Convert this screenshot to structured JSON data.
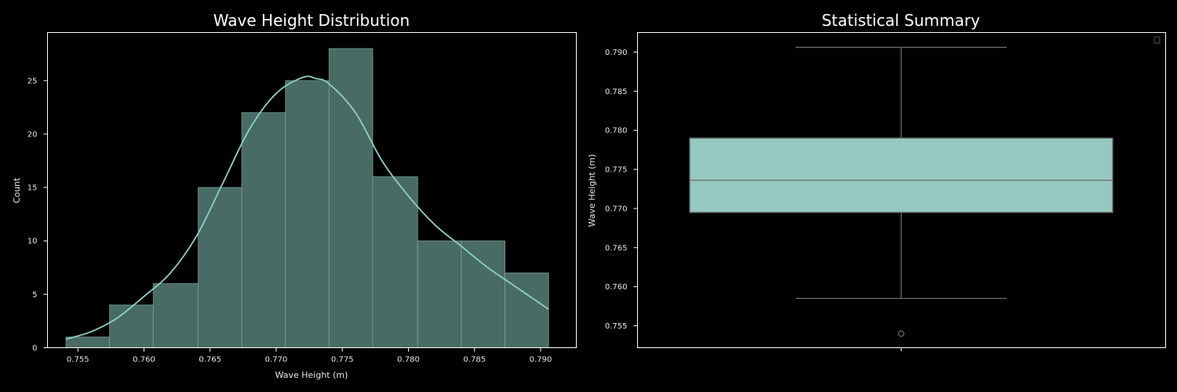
{
  "chart_data": [
    {
      "type": "bar",
      "subtype": "histogram_with_kde",
      "title": "Wave Height Distribution",
      "xlabel": "Wave Height (m)",
      "ylabel": "Count",
      "xlim": [
        0.7527,
        0.7927
      ],
      "ylim": [
        0,
        29.5
      ],
      "xticks": [
        "0.755",
        "0.760",
        "0.765",
        "0.770",
        "0.775",
        "0.780",
        "0.785",
        "0.790"
      ],
      "yticks": [
        "0",
        "5",
        "10",
        "15",
        "20",
        "25"
      ],
      "bin_edges": [
        0.7541,
        0.7574,
        0.7607,
        0.7641,
        0.7674,
        0.7707,
        0.774,
        0.7773,
        0.7807,
        0.784,
        0.7873,
        0.7906
      ],
      "counts": [
        1,
        4,
        6,
        15,
        22,
        25,
        28,
        16,
        10,
        10,
        7
      ],
      "kde": {
        "x": [
          0.7541,
          0.756,
          0.758,
          0.76,
          0.762,
          0.764,
          0.766,
          0.768,
          0.77,
          0.772,
          0.773,
          0.774,
          0.776,
          0.778,
          0.78,
          0.782,
          0.784,
          0.786,
          0.788,
          0.7906
        ],
        "y": [
          0.8,
          1.5,
          2.8,
          4.8,
          7.0,
          10.5,
          15.5,
          20.5,
          23.8,
          25.3,
          25.2,
          24.7,
          22.0,
          17.5,
          14.2,
          11.5,
          9.5,
          7.5,
          5.8,
          3.6
        ]
      },
      "bar_color": "#486b63",
      "line_color": "#8dd3c7",
      "grid": false
    },
    {
      "type": "box",
      "title": "Statistical Summary",
      "xlabel": "",
      "ylabel": "Wave Height (m)",
      "ylim": [
        0.7522,
        0.7925
      ],
      "yticks": [
        "0.755",
        "0.760",
        "0.765",
        "0.770",
        "0.775",
        "0.780",
        "0.785",
        "0.790"
      ],
      "whisker_low": 0.7585,
      "q1": 0.7695,
      "median": 0.7736,
      "q3": 0.779,
      "whisker_high": 0.7906,
      "outliers": [
        0.754
      ],
      "box_color": "#95c8bf",
      "line_color": "#6b6b6b",
      "legend": "empty (top-right)",
      "grid": false
    }
  ],
  "hist": {
    "title": "Wave Height Distribution",
    "xlabel": "Wave Height (m)",
    "ylabel": "Count",
    "xticks": [
      "0.755",
      "0.760",
      "0.765",
      "0.770",
      "0.775",
      "0.780",
      "0.785",
      "0.790"
    ],
    "yticks": [
      "0",
      "5",
      "10",
      "15",
      "20",
      "25"
    ]
  },
  "box": {
    "title": "Statistical Summary",
    "ylabel": "Wave Height (m)",
    "yticks": [
      "0.755",
      "0.760",
      "0.765",
      "0.770",
      "0.775",
      "0.780",
      "0.785",
      "0.790"
    ]
  }
}
